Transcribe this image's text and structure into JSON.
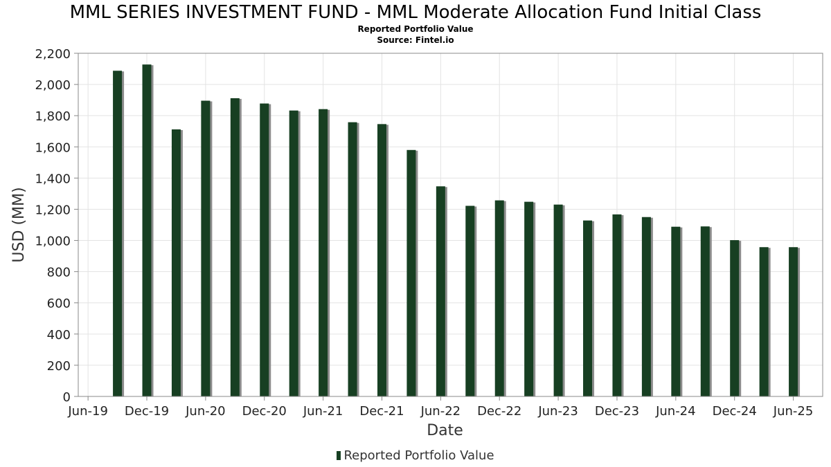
{
  "chart_data": {
    "type": "bar",
    "title": "MML SERIES INVESTMENT FUND - MML Moderate Allocation Fund Initial Class",
    "subtitle": "Reported Portfolio Value",
    "source": "Source: Fintel.io",
    "xlabel": "Date",
    "ylabel": "USD (MM)",
    "ylim": [
      0,
      2200
    ],
    "yticks": [
      0,
      200,
      400,
      600,
      800,
      1000,
      1200,
      1400,
      1600,
      1800,
      2000,
      2200
    ],
    "ytick_labels": [
      "0",
      "200",
      "400",
      "600",
      "800",
      "1,000",
      "1,200",
      "1,400",
      "1,600",
      "1,800",
      "2,000",
      "2,200"
    ],
    "xticks": [
      "2019-06",
      "2019-12",
      "2020-06",
      "2020-12",
      "2021-06",
      "2021-12",
      "2022-06",
      "2022-12",
      "2023-06",
      "2023-12",
      "2024-06",
      "2024-12",
      "2025-06"
    ],
    "xtick_labels": [
      "Jun-19",
      "Dec-19",
      "Jun-20",
      "Dec-20",
      "Jun-21",
      "Dec-21",
      "Jun-22",
      "Dec-22",
      "Jun-23",
      "Dec-23",
      "Jun-24",
      "Dec-24",
      "Jun-25"
    ],
    "xlim": [
      "2019-05",
      "2025-09"
    ],
    "grid": true,
    "legend_position": "bottom-center",
    "series": [
      {
        "name": "Reported Portfolio Value",
        "color": "#173f22",
        "x": [
          "2019-09",
          "2019-12",
          "2020-03",
          "2020-06",
          "2020-09",
          "2020-12",
          "2021-03",
          "2021-06",
          "2021-09",
          "2021-12",
          "2022-03",
          "2022-06",
          "2022-09",
          "2022-12",
          "2023-03",
          "2023-06",
          "2023-09",
          "2023-12",
          "2024-03",
          "2024-06",
          "2024-09",
          "2024-12",
          "2025-03",
          "2025-06"
        ],
        "values": [
          2088,
          2128,
          1712,
          1896,
          1912,
          1878,
          1833,
          1842,
          1758,
          1746,
          1580,
          1347,
          1222,
          1257,
          1248,
          1230,
          1128,
          1167,
          1150,
          1088,
          1090,
          1002,
          957,
          957
        ]
      }
    ]
  }
}
